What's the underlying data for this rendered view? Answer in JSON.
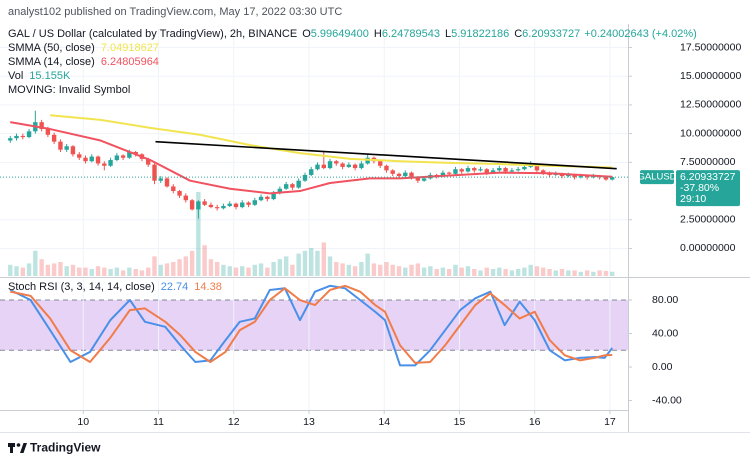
{
  "header": {
    "published": "analyst102 published on TradingView.com, May 17, 2022 03:30 UTC",
    "logo": "TradingView"
  },
  "chart_data": [
    {
      "type": "candlestick",
      "title": "GAL / US Dollar (calculated by TradingView), 2h, BINANCE",
      "legend": [
        {
          "key": "O",
          "value": "5.99649400"
        },
        {
          "key": "H",
          "value": "6.24789543"
        },
        {
          "key": "L",
          "value": "5.91822186"
        },
        {
          "key": "C",
          "value": "6.20933727"
        }
      ],
      "change": "+0.24002643 (+4.02%)",
      "notice": "MOVING: Invalid Symbol",
      "symbol": "GALUSD",
      "change_percent": "-37.80%",
      "countdown": "29:10",
      "up_color": "#26a69a",
      "down_color": "#ef5350",
      "xlim": [
        9.0,
        17.24
      ],
      "ylim": [
        -2.4,
        19.2
      ],
      "yticks": [
        {
          "value": 17.5,
          "label": "17.50000000"
        },
        {
          "value": 15,
          "label": "15.00000000"
        },
        {
          "value": 12.5,
          "label": "12.50000000"
        },
        {
          "value": 10,
          "label": "10.00000000"
        },
        {
          "value": 7.5,
          "label": "7.50000000"
        },
        {
          "value": 2.5,
          "label": "2.50000000"
        },
        {
          "value": 0,
          "label": "0.00000000"
        }
      ],
      "grid": true,
      "x": [
        9.03,
        9.113,
        9.197,
        9.28,
        9.363,
        9.447,
        9.53,
        9.613,
        9.697,
        9.78,
        9.863,
        9.947,
        10.03,
        10.113,
        10.197,
        10.28,
        10.363,
        10.447,
        10.53,
        10.613,
        10.697,
        10.78,
        10.863,
        10.947,
        11.03,
        11.113,
        11.197,
        11.28,
        11.363,
        11.447,
        11.53,
        11.613,
        11.697,
        11.78,
        11.863,
        11.947,
        12.03,
        12.113,
        12.197,
        12.28,
        12.363,
        12.447,
        12.53,
        12.613,
        12.697,
        12.78,
        12.863,
        12.947,
        13.03,
        13.113,
        13.197,
        13.28,
        13.363,
        13.447,
        13.53,
        13.613,
        13.697,
        13.78,
        13.863,
        13.947,
        14.03,
        14.113,
        14.197,
        14.28,
        14.363,
        14.447,
        14.53,
        14.613,
        14.697,
        14.78,
        14.863,
        14.947,
        15.03,
        15.113,
        15.197,
        15.28,
        15.363,
        15.447,
        15.53,
        15.613,
        15.697,
        15.78,
        15.863,
        15.947,
        16.03,
        16.113,
        16.197,
        16.28,
        16.363,
        16.447,
        16.53,
        16.613,
        16.697,
        16.78,
        16.863,
        16.947,
        17.03
      ],
      "ohlc": [
        [
          9.4,
          9.8,
          9.2,
          9.6
        ],
        [
          9.6,
          10.0,
          9.4,
          9.8
        ],
        [
          9.8,
          10.0,
          9.5,
          9.7
        ],
        [
          9.7,
          10.4,
          9.6,
          10.2
        ],
        [
          10.2,
          12.0,
          10.0,
          11.0
        ],
        [
          11.0,
          11.2,
          10.2,
          10.4
        ],
        [
          10.4,
          10.6,
          9.7,
          9.9
        ],
        [
          9.9,
          10.1,
          9.1,
          9.3
        ],
        [
          9.3,
          9.5,
          8.4,
          8.6
        ],
        [
          8.6,
          9.1,
          8.4,
          8.9
        ],
        [
          8.9,
          9.0,
          8.0,
          8.2
        ],
        [
          8.2,
          8.4,
          7.7,
          7.9
        ],
        [
          7.9,
          8.1,
          7.4,
          7.6
        ],
        [
          7.6,
          8.2,
          7.5,
          8.0
        ],
        [
          8.0,
          8.1,
          7.2,
          7.4
        ],
        [
          7.4,
          7.6,
          6.8,
          7.2
        ],
        [
          7.2,
          7.9,
          7.1,
          7.7
        ],
        [
          7.7,
          8.3,
          7.6,
          8.1
        ],
        [
          8.1,
          8.2,
          7.7,
          7.9
        ],
        [
          7.9,
          8.6,
          7.8,
          8.4
        ],
        [
          8.4,
          8.5,
          8.0,
          8.2
        ],
        [
          8.2,
          8.3,
          7.6,
          7.8
        ],
        [
          7.8,
          7.9,
          7.1,
          7.3
        ],
        [
          7.3,
          7.4,
          5.6,
          5.9
        ],
        [
          5.9,
          6.3,
          5.7,
          6.1
        ],
        [
          6.1,
          6.2,
          5.3,
          5.4
        ],
        [
          5.4,
          5.6,
          4.8,
          5.0
        ],
        [
          5.0,
          5.1,
          4.4,
          4.6
        ],
        [
          4.6,
          4.8,
          4.0,
          4.2
        ],
        [
          4.2,
          4.3,
          3.3,
          3.4
        ],
        [
          3.4,
          4.2,
          2.6,
          4.1
        ],
        [
          4.1,
          4.3,
          3.7,
          3.8
        ],
        [
          3.8,
          4.0,
          3.5,
          3.6
        ],
        [
          3.6,
          3.8,
          3.3,
          3.5
        ],
        [
          3.5,
          3.9,
          3.4,
          3.7
        ],
        [
          3.7,
          4.1,
          3.6,
          3.9
        ],
        [
          3.9,
          4.0,
          3.4,
          3.6
        ],
        [
          3.6,
          4.2,
          3.5,
          4.0
        ],
        [
          4.0,
          4.1,
          3.6,
          3.8
        ],
        [
          3.8,
          4.4,
          3.7,
          4.2
        ],
        [
          4.2,
          4.7,
          4.1,
          4.5
        ],
        [
          4.5,
          4.6,
          4.1,
          4.3
        ],
        [
          4.3,
          5.0,
          4.2,
          4.8
        ],
        [
          4.8,
          5.4,
          4.7,
          5.2
        ],
        [
          5.2,
          5.8,
          5.1,
          5.6
        ],
        [
          5.6,
          5.7,
          5.1,
          5.3
        ],
        [
          5.3,
          6.1,
          5.2,
          5.9
        ],
        [
          5.9,
          6.6,
          5.8,
          6.4
        ],
        [
          6.4,
          7.1,
          6.3,
          6.9
        ],
        [
          6.9,
          7.5,
          6.8,
          7.3
        ],
        [
          7.3,
          8.5,
          6.9,
          7.0
        ],
        [
          7.0,
          7.8,
          6.9,
          7.6
        ],
        [
          7.6,
          7.7,
          7.2,
          7.4
        ],
        [
          7.4,
          7.5,
          6.9,
          7.1
        ],
        [
          7.1,
          7.5,
          7.0,
          7.3
        ],
        [
          7.3,
          7.4,
          6.8,
          7.0
        ],
        [
          7.0,
          7.6,
          6.9,
          7.4
        ],
        [
          7.4,
          8.2,
          7.3,
          7.9
        ],
        [
          7.9,
          8.0,
          7.4,
          7.6
        ],
        [
          7.6,
          7.7,
          7.0,
          7.2
        ],
        [
          7.2,
          7.3,
          6.6,
          6.8
        ],
        [
          6.8,
          6.9,
          6.3,
          6.5
        ],
        [
          6.5,
          6.6,
          6.1,
          6.3
        ],
        [
          6.3,
          6.8,
          6.2,
          6.6
        ],
        [
          6.6,
          6.7,
          6.0,
          6.2
        ],
        [
          6.2,
          6.3,
          5.7,
          5.9
        ],
        [
          5.9,
          6.3,
          5.8,
          6.1
        ],
        [
          6.1,
          6.6,
          6.0,
          6.4
        ],
        [
          6.4,
          6.5,
          6.1,
          6.3
        ],
        [
          6.3,
          6.8,
          6.2,
          6.6
        ],
        [
          6.6,
          6.7,
          6.3,
          6.5
        ],
        [
          6.5,
          7.1,
          6.4,
          6.9
        ],
        [
          6.9,
          7.0,
          6.5,
          6.7
        ],
        [
          6.7,
          7.2,
          6.6,
          7.0
        ],
        [
          7.0,
          7.1,
          6.6,
          6.8
        ],
        [
          6.8,
          7.1,
          6.7,
          6.9
        ],
        [
          6.9,
          7.0,
          6.4,
          6.6
        ],
        [
          6.6,
          7.0,
          6.5,
          6.8
        ],
        [
          6.8,
          7.2,
          6.7,
          7.0
        ],
        [
          7.0,
          7.1,
          6.5,
          6.7
        ],
        [
          6.7,
          7.0,
          6.6,
          6.8
        ],
        [
          6.8,
          7.1,
          6.7,
          6.9
        ],
        [
          6.9,
          7.3,
          6.8,
          7.1
        ],
        [
          7.1,
          7.6,
          7.0,
          7.3
        ],
        [
          7.3,
          7.4,
          6.6,
          6.8
        ],
        [
          6.8,
          6.9,
          6.4,
          6.6
        ],
        [
          6.6,
          6.7,
          6.2,
          6.4
        ],
        [
          6.4,
          6.7,
          6.3,
          6.5
        ],
        [
          6.5,
          6.6,
          6.1,
          6.3
        ],
        [
          6.3,
          6.6,
          6.2,
          6.4
        ],
        [
          6.4,
          6.5,
          6.0,
          6.2
        ],
        [
          6.2,
          6.5,
          6.1,
          6.3
        ],
        [
          6.3,
          6.4,
          6.0,
          6.2
        ],
        [
          6.2,
          6.5,
          6.1,
          6.3
        ],
        [
          6.3,
          6.4,
          6.0,
          6.2
        ],
        [
          6.2,
          6.3,
          5.9,
          6.0
        ],
        [
          5.996494,
          6.24789543,
          5.91822186,
          6.20933727
        ]
      ],
      "volume": {
        "name": "Vol",
        "label": "15.155K",
        "values": [
          40000,
          35000,
          30000,
          45000,
          90000,
          60000,
          40000,
          45000,
          50000,
          35000,
          40000,
          30000,
          30000,
          25000,
          35000,
          30000,
          25000,
          30000,
          20000,
          30000,
          25000,
          20000,
          30000,
          70000,
          40000,
          45000,
          50000,
          60000,
          70000,
          90000,
          300000,
          110000,
          60000,
          50000,
          40000,
          35000,
          30000,
          35000,
          30000,
          40000,
          45000,
          30000,
          50000,
          60000,
          70000,
          40000,
          80000,
          90000,
          100000,
          90000,
          120000,
          70000,
          50000,
          45000,
          40000,
          35000,
          50000,
          80000,
          45000,
          40000,
          50000,
          40000,
          35000,
          30000,
          40000,
          45000,
          30000,
          35000,
          25000,
          30000,
          25000,
          40000,
          30000,
          35000,
          25000,
          20000,
          30000,
          25000,
          30000,
          25000,
          20000,
          25000,
          30000,
          40000,
          35000,
          30000,
          25000,
          20000,
          25000,
          20000,
          20000,
          15000,
          20000,
          15000,
          20000,
          18000,
          15155
        ]
      },
      "series": [
        {
          "name": "SMMA (50, close)",
          "color": "#f2e44f",
          "x": [
            9.56,
            10.23,
            10.89,
            11.55,
            12.22,
            12.88,
            13.55,
            14.21,
            14.87,
            15.54,
            16.2,
            17.03
          ],
          "values": [
            11.6,
            11.2,
            10.5,
            9.9,
            9.0,
            8.3,
            7.8,
            7.6,
            7.45,
            7.35,
            7.2,
            7.04918627
          ]
        },
        {
          "name": "SMMA (14, close)",
          "color": "#f0525f",
          "x": [
            9.03,
            9.56,
            10.23,
            10.89,
            11.42,
            11.95,
            12.48,
            12.88,
            13.28,
            13.81,
            14.21,
            14.87,
            15.54,
            16.2,
            17.03
          ],
          "values": [
            11.0,
            10.4,
            9.4,
            7.7,
            5.9,
            5.2,
            4.8,
            5.0,
            5.7,
            6.1,
            6.1,
            6.35,
            6.6,
            6.55,
            6.24805964
          ]
        }
      ],
      "trendline": {
        "color": "#000000",
        "x": [
          10.96,
          17.09
        ],
        "values": [
          9.3,
          6.95
        ]
      }
    },
    {
      "type": "line",
      "title": "Stoch RSI (3, 3, 14, 14, close)",
      "xlim": [
        9.0,
        17.24
      ],
      "xticks": [
        10,
        11,
        12,
        13,
        14,
        15,
        16,
        17
      ],
      "ylim": [
        -51.3,
        105.1
      ],
      "yticks": [
        {
          "value": 80,
          "label": "80.00"
        },
        {
          "value": 40,
          "label": "40.00"
        },
        {
          "value": 0,
          "label": "0.00"
        },
        {
          "value": -40,
          "label": "-40.00"
        }
      ],
      "band": [
        20,
        80
      ],
      "band_color": "#e7d3f6",
      "x": [
        9.03,
        9.3,
        9.56,
        9.83,
        10.09,
        10.36,
        10.62,
        10.82,
        11.09,
        11.29,
        11.49,
        11.69,
        11.89,
        12.08,
        12.28,
        12.48,
        12.68,
        12.88,
        13.08,
        13.28,
        13.48,
        13.68,
        13.88,
        14.01,
        14.21,
        14.41,
        14.61,
        14.81,
        15.01,
        15.21,
        15.41,
        15.6,
        15.8,
        16.0,
        16.2,
        16.4,
        16.6,
        16.8,
        16.93,
        17.03
      ],
      "series": [
        {
          "color": "#4a90e8",
          "values": [
            92,
            80,
            44,
            6,
            18,
            56,
            80,
            54,
            48,
            26,
            6,
            8,
            32,
            54,
            58,
            92,
            94,
            56,
            90,
            97,
            94,
            80,
            66,
            56,
            2,
            2,
            20,
            44,
            68,
            82,
            90,
            50,
            78,
            56,
            20,
            8,
            11,
            12,
            11,
            22.74
          ]
        },
        {
          "color": "#f07c4a",
          "values": [
            90,
            85,
            58,
            20,
            6,
            35,
            68,
            70,
            54,
            38,
            18,
            6,
            18,
            44,
            54,
            80,
            94,
            80,
            74,
            92,
            97,
            90,
            74,
            66,
            26,
            5,
            6,
            26,
            50,
            74,
            88,
            74,
            58,
            66,
            32,
            14,
            8,
            11,
            14,
            14.38
          ]
        }
      ]
    }
  ]
}
